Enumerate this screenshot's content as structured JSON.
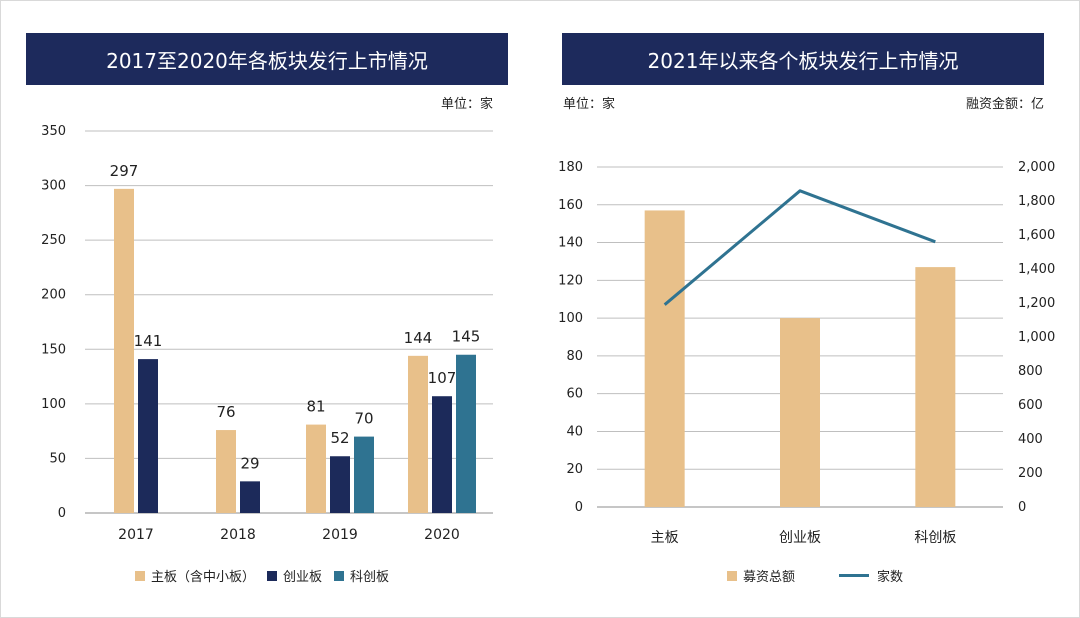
{
  "colors": {
    "title_bg": "#1d2a5c",
    "gold": "#e8c08a",
    "navy": "#1c2a5a",
    "teal": "#2f7391",
    "grid": "#bfbfbf"
  },
  "left": {
    "title": "2017至2020年各板块发行上市情况",
    "unit": "单位：家",
    "chart_data": {
      "type": "bar",
      "categories": [
        "2017",
        "2018",
        "2019",
        "2020"
      ],
      "series": [
        {
          "name": "主板（含中小板）",
          "values": [
            297,
            76,
            81,
            144
          ]
        },
        {
          "name": "创业板",
          "values": [
            141,
            29,
            52,
            107
          ]
        },
        {
          "name": "科创板",
          "values": [
            null,
            null,
            70,
            145
          ]
        }
      ],
      "ylim": [
        0,
        350
      ],
      "yticks": [
        "0",
        "50",
        "100",
        "150",
        "200",
        "250",
        "300",
        "350"
      ],
      "grid": true,
      "legend": "bottom"
    }
  },
  "right": {
    "title": "2021年以来各个板块发行上市情况",
    "unit_left": "单位：家",
    "unit_right": "融资金额：亿",
    "chart_data": {
      "type": "bar+line",
      "categories": [
        "主板",
        "创业板",
        "科创板"
      ],
      "series": [
        {
          "name": "募资总额",
          "type": "bar",
          "axis": "left",
          "values": [
            157,
            100,
            127
          ]
        },
        {
          "name": "家数",
          "type": "line",
          "axis": "right",
          "values": [
            1190,
            1860,
            1560
          ]
        }
      ],
      "ylim_left": [
        0,
        180
      ],
      "yticks_left": [
        "0",
        "20",
        "40",
        "60",
        "80",
        "100",
        "120",
        "140",
        "160",
        "180"
      ],
      "ylim_right": [
        0,
        2000
      ],
      "yticks_right": [
        "0",
        "200",
        "400",
        "600",
        "800",
        "1,000",
        "1,200",
        "1,400",
        "1,600",
        "1,800",
        "2,000"
      ],
      "grid": true,
      "legend": "bottom"
    }
  }
}
